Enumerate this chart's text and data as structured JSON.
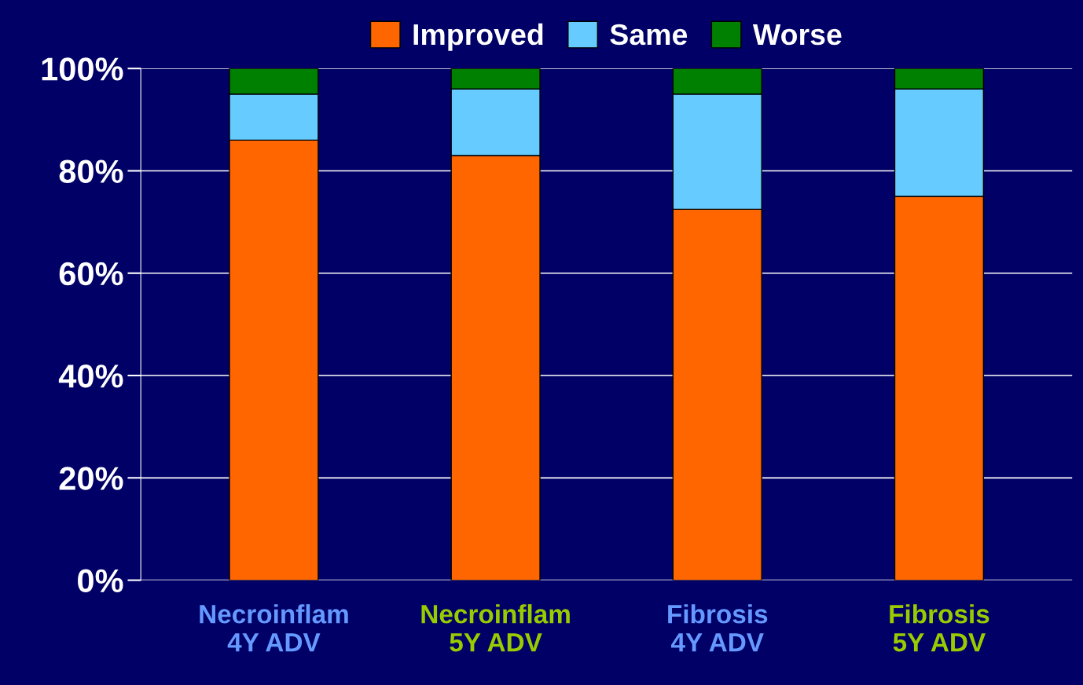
{
  "chart_data": {
    "type": "bar",
    "stacked": true,
    "categories": [
      "Necroinflam\n4Y ADV",
      "Necroinflam\n5Y ADV",
      "Fibrosis\n4Y ADV",
      "Fibrosis\n5Y ADV"
    ],
    "series": [
      {
        "name": "Improved",
        "color": "#ff6600",
        "values": [
          86,
          83,
          72.5,
          75
        ]
      },
      {
        "name": "Same",
        "color": "#66ccff",
        "values": [
          9,
          13,
          22.5,
          21
        ]
      },
      {
        "name": "Worse",
        "color": "#008000",
        "values": [
          5,
          4,
          5,
          4
        ]
      }
    ],
    "ylim": [
      0,
      100
    ],
    "yticks": [
      {
        "value": 0,
        "label": "0%"
      },
      {
        "value": 20,
        "label": "20%"
      },
      {
        "value": 40,
        "label": "40%"
      },
      {
        "value": 60,
        "label": "60%"
      },
      {
        "value": 80,
        "label": "80%"
      },
      {
        "value": 100,
        "label": "100%"
      }
    ],
    "grid": "y",
    "legend": "top"
  }
}
